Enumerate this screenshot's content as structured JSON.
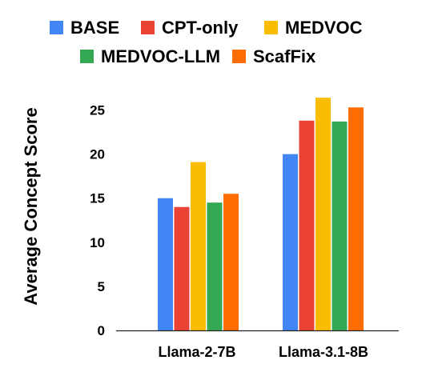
{
  "chart_data": {
    "type": "bar",
    "title": "",
    "xlabel": "",
    "ylabel": "Average Concept Score",
    "ylim": [
      0,
      27.5
    ],
    "yticks": [
      0,
      5,
      10,
      15,
      20,
      25
    ],
    "grid": false,
    "legend_position": "top",
    "categories": [
      "Llama-2-7B",
      "Llama-3.1-8B"
    ],
    "series": [
      {
        "name": "BASE",
        "color": "#4285f4",
        "values": [
          15.0,
          20.0
        ]
      },
      {
        "name": "CPT-only",
        "color": "#ea4335",
        "values": [
          14.0,
          23.8
        ]
      },
      {
        "name": "MEDVOC",
        "color": "#fbbc04",
        "values": [
          19.1,
          26.4
        ]
      },
      {
        "name": "MEDVOC-LLM",
        "color": "#34a853",
        "values": [
          14.5,
          23.7
        ]
      },
      {
        "name": "ScafFix",
        "color": "#ff6d01",
        "values": [
          15.5,
          25.3
        ]
      }
    ]
  }
}
